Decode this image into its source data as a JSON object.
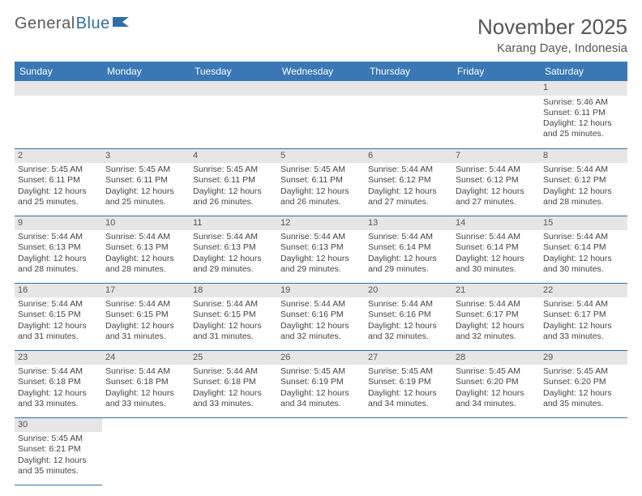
{
  "logo": {
    "text_gray": "General",
    "text_blue": "Blue"
  },
  "title": "November 2025",
  "location": "Karang Daye, Indonesia",
  "weekdays": [
    "Sunday",
    "Monday",
    "Tuesday",
    "Wednesday",
    "Thursday",
    "Friday",
    "Saturday"
  ],
  "colors": {
    "header_bg": "#3a78b5",
    "header_text": "#ffffff",
    "daynum_bg": "#e6e6e6",
    "cell_border": "#2f6fa8",
    "title_color": "#555555",
    "body_text": "#444444"
  },
  "layout": {
    "cols": 7,
    "rows": 6,
    "first_weekday_index": 6,
    "days_in_month": 30
  },
  "days": [
    {
      "n": 1,
      "sunrise": "5:46 AM",
      "sunset": "6:11 PM",
      "daylight": "12 hours and 25 minutes."
    },
    {
      "n": 2,
      "sunrise": "5:45 AM",
      "sunset": "6:11 PM",
      "daylight": "12 hours and 25 minutes."
    },
    {
      "n": 3,
      "sunrise": "5:45 AM",
      "sunset": "6:11 PM",
      "daylight": "12 hours and 25 minutes."
    },
    {
      "n": 4,
      "sunrise": "5:45 AM",
      "sunset": "6:11 PM",
      "daylight": "12 hours and 26 minutes."
    },
    {
      "n": 5,
      "sunrise": "5:45 AM",
      "sunset": "6:11 PM",
      "daylight": "12 hours and 26 minutes."
    },
    {
      "n": 6,
      "sunrise": "5:44 AM",
      "sunset": "6:12 PM",
      "daylight": "12 hours and 27 minutes."
    },
    {
      "n": 7,
      "sunrise": "5:44 AM",
      "sunset": "6:12 PM",
      "daylight": "12 hours and 27 minutes."
    },
    {
      "n": 8,
      "sunrise": "5:44 AM",
      "sunset": "6:12 PM",
      "daylight": "12 hours and 28 minutes."
    },
    {
      "n": 9,
      "sunrise": "5:44 AM",
      "sunset": "6:13 PM",
      "daylight": "12 hours and 28 minutes."
    },
    {
      "n": 10,
      "sunrise": "5:44 AM",
      "sunset": "6:13 PM",
      "daylight": "12 hours and 28 minutes."
    },
    {
      "n": 11,
      "sunrise": "5:44 AM",
      "sunset": "6:13 PM",
      "daylight": "12 hours and 29 minutes."
    },
    {
      "n": 12,
      "sunrise": "5:44 AM",
      "sunset": "6:13 PM",
      "daylight": "12 hours and 29 minutes."
    },
    {
      "n": 13,
      "sunrise": "5:44 AM",
      "sunset": "6:14 PM",
      "daylight": "12 hours and 29 minutes."
    },
    {
      "n": 14,
      "sunrise": "5:44 AM",
      "sunset": "6:14 PM",
      "daylight": "12 hours and 30 minutes."
    },
    {
      "n": 15,
      "sunrise": "5:44 AM",
      "sunset": "6:14 PM",
      "daylight": "12 hours and 30 minutes."
    },
    {
      "n": 16,
      "sunrise": "5:44 AM",
      "sunset": "6:15 PM",
      "daylight": "12 hours and 31 minutes."
    },
    {
      "n": 17,
      "sunrise": "5:44 AM",
      "sunset": "6:15 PM",
      "daylight": "12 hours and 31 minutes."
    },
    {
      "n": 18,
      "sunrise": "5:44 AM",
      "sunset": "6:15 PM",
      "daylight": "12 hours and 31 minutes."
    },
    {
      "n": 19,
      "sunrise": "5:44 AM",
      "sunset": "6:16 PM",
      "daylight": "12 hours and 32 minutes."
    },
    {
      "n": 20,
      "sunrise": "5:44 AM",
      "sunset": "6:16 PM",
      "daylight": "12 hours and 32 minutes."
    },
    {
      "n": 21,
      "sunrise": "5:44 AM",
      "sunset": "6:17 PM",
      "daylight": "12 hours and 32 minutes."
    },
    {
      "n": 22,
      "sunrise": "5:44 AM",
      "sunset": "6:17 PM",
      "daylight": "12 hours and 33 minutes."
    },
    {
      "n": 23,
      "sunrise": "5:44 AM",
      "sunset": "6:18 PM",
      "daylight": "12 hours and 33 minutes."
    },
    {
      "n": 24,
      "sunrise": "5:44 AM",
      "sunset": "6:18 PM",
      "daylight": "12 hours and 33 minutes."
    },
    {
      "n": 25,
      "sunrise": "5:44 AM",
      "sunset": "6:18 PM",
      "daylight": "12 hours and 33 minutes."
    },
    {
      "n": 26,
      "sunrise": "5:45 AM",
      "sunset": "6:19 PM",
      "daylight": "12 hours and 34 minutes."
    },
    {
      "n": 27,
      "sunrise": "5:45 AM",
      "sunset": "6:19 PM",
      "daylight": "12 hours and 34 minutes."
    },
    {
      "n": 28,
      "sunrise": "5:45 AM",
      "sunset": "6:20 PM",
      "daylight": "12 hours and 34 minutes."
    },
    {
      "n": 29,
      "sunrise": "5:45 AM",
      "sunset": "6:20 PM",
      "daylight": "12 hours and 35 minutes."
    },
    {
      "n": 30,
      "sunrise": "5:45 AM",
      "sunset": "6:21 PM",
      "daylight": "12 hours and 35 minutes."
    }
  ],
  "labels": {
    "sunrise": "Sunrise:",
    "sunset": "Sunset:",
    "daylight": "Daylight:"
  }
}
